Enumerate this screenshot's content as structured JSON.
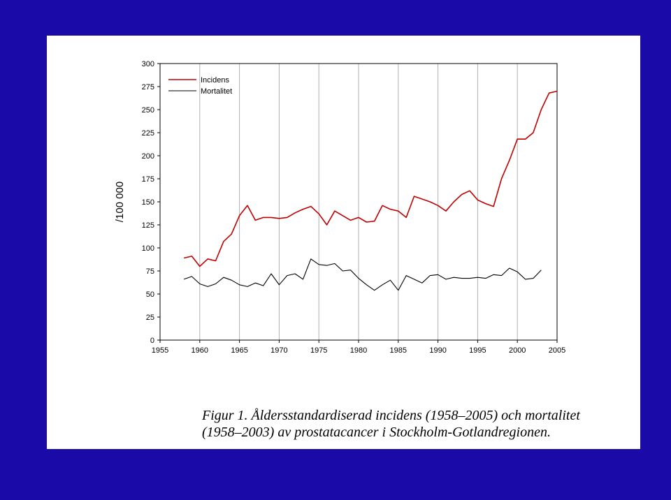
{
  "chart_data": {
    "type": "line",
    "ylabel": "/100 000",
    "xlabel": "",
    "xlim": [
      1955,
      2005
    ],
    "ylim": [
      0,
      300
    ],
    "xticks": [
      1955,
      1960,
      1965,
      1970,
      1975,
      1980,
      1985,
      1990,
      1995,
      2000,
      2005
    ],
    "yticks": [
      0,
      25,
      50,
      75,
      100,
      125,
      150,
      175,
      200,
      225,
      250,
      275,
      300
    ],
    "grid": "vertical",
    "legend_position": "top-left",
    "series": [
      {
        "name": "Incidens",
        "color": "#c00000",
        "x": [
          1958,
          1959,
          1960,
          1961,
          1962,
          1963,
          1964,
          1965,
          1966,
          1967,
          1968,
          1969,
          1970,
          1971,
          1972,
          1973,
          1974,
          1975,
          1976,
          1977,
          1978,
          1979,
          1980,
          1981,
          1982,
          1983,
          1984,
          1985,
          1986,
          1987,
          1988,
          1989,
          1990,
          1991,
          1992,
          1993,
          1994,
          1995,
          1996,
          1997,
          1998,
          1999,
          2000,
          2001,
          2002,
          2003,
          2004,
          2005
        ],
        "values": [
          89,
          91,
          80,
          88,
          86,
          107,
          115,
          135,
          146,
          130,
          133,
          133,
          132,
          133,
          138,
          142,
          145,
          137,
          125,
          140,
          135,
          130,
          133,
          128,
          129,
          146,
          142,
          140,
          133,
          156,
          153,
          150,
          146,
          140,
          150,
          158,
          162,
          152,
          148,
          145,
          175,
          195,
          218,
          218,
          225,
          250,
          268,
          270
        ]
      },
      {
        "name": "Mortalitet",
        "color": "#000000",
        "x": [
          1958,
          1959,
          1960,
          1961,
          1962,
          1963,
          1964,
          1965,
          1966,
          1967,
          1968,
          1969,
          1970,
          1971,
          1972,
          1973,
          1974,
          1975,
          1976,
          1977,
          1978,
          1979,
          1980,
          1981,
          1982,
          1983,
          1984,
          1985,
          1986,
          1987,
          1988,
          1989,
          1990,
          1991,
          1992,
          1993,
          1994,
          1995,
          1996,
          1997,
          1998,
          1999,
          2000,
          2001,
          2002,
          2003
        ],
        "values": [
          66,
          69,
          61,
          58,
          61,
          68,
          65,
          60,
          58,
          62,
          59,
          72,
          60,
          70,
          72,
          66,
          88,
          82,
          81,
          83,
          75,
          76,
          67,
          60,
          54,
          60,
          65,
          54,
          70,
          66,
          62,
          70,
          71,
          66,
          68,
          67,
          67,
          68,
          67,
          71,
          70,
          78,
          74,
          66,
          67,
          76
        ]
      }
    ]
  },
  "caption": {
    "line1": "Figur 1. Åldersstandardiserad incidens (1958–2005) och mortalitet",
    "line2": "(1958–2003) av prostatacancer i Stockholm-Gotlandregionen."
  }
}
